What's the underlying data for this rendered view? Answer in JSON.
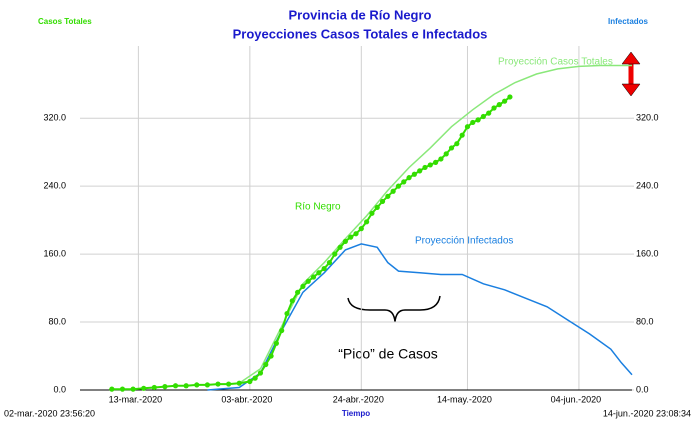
{
  "chart_data": {
    "type": "line",
    "title": "Provincia de Río Negro",
    "subtitle": "Proyecciones Casos Totales e Infectados",
    "y_label": "Casos Totales",
    "y2_label": "Infectados",
    "x_label": "Tiempo",
    "x_start_label": "02-mar.-2020 23:56:20",
    "x_end_label": "14-jun.-2020 23:08:34",
    "annotation": "“Pico” de Casos",
    "xlim": [
      0,
      104
    ],
    "xticks": [
      {
        "value": 11,
        "label": "13-mar.-2020"
      },
      {
        "value": 32,
        "label": "03-abr.-2020"
      },
      {
        "value": 53,
        "label": "24-abr.-2020"
      },
      {
        "value": 73,
        "label": "14-may.-2020"
      },
      {
        "value": 94,
        "label": "04-jun.-2020"
      }
    ],
    "ylim": [
      0,
      405
    ],
    "yticks": [
      {
        "value": 0,
        "label": "0.0"
      },
      {
        "value": 80,
        "label": "80.0"
      },
      {
        "value": 160,
        "label": "160.0"
      },
      {
        "value": 240,
        "label": "240.0"
      },
      {
        "value": 320,
        "label": "320.0"
      }
    ],
    "y2lim": [
      0,
      405
    ],
    "y2ticks": [
      {
        "value": 0,
        "label": "0.0"
      },
      {
        "value": 80,
        "label": "80.0"
      },
      {
        "value": 160,
        "label": "160.0"
      },
      {
        "value": 240,
        "label": "240.0"
      },
      {
        "value": 320,
        "label": "320.0"
      }
    ],
    "grid": true,
    "series": [
      {
        "name": "Proyección Casos Totales",
        "color": "#8ae87a",
        "markers": false,
        "x": [
          30,
          34,
          38,
          42,
          46,
          50,
          54,
          58,
          62,
          66,
          70,
          74,
          78,
          82,
          86,
          90,
          94,
          98,
          104
        ],
        "values": [
          8,
          25,
          75,
          125,
          150,
          178,
          205,
          235,
          262,
          285,
          310,
          330,
          348,
          362,
          372,
          378,
          381,
          382,
          382
        ]
      },
      {
        "name": "Proyección Infectados",
        "color": "#1a7fe0",
        "markers": false,
        "axis": "y2",
        "x": [
          24,
          30,
          34,
          38,
          42,
          46,
          50,
          53,
          56,
          58,
          60,
          64,
          68,
          72,
          76,
          80,
          84,
          88,
          92,
          96,
          100,
          102,
          104
        ],
        "values": [
          0,
          3,
          20,
          70,
          115,
          138,
          165,
          172,
          168,
          150,
          140,
          138,
          136,
          136,
          125,
          118,
          108,
          98,
          82,
          66,
          48,
          32,
          18
        ]
      },
      {
        "name": "Río Negro",
        "color": "#33dd00",
        "markers": true,
        "x": [
          6,
          8,
          10,
          12,
          14,
          16,
          18,
          20,
          22,
          24,
          26,
          28,
          30,
          32,
          33,
          34,
          35,
          36,
          37,
          38,
          39,
          40,
          41,
          42,
          43,
          44,
          45,
          46,
          47,
          48,
          49,
          50,
          51,
          52,
          53,
          54,
          55,
          56,
          57,
          58,
          59,
          60,
          61,
          62,
          63,
          64,
          65,
          66,
          67,
          68,
          69,
          70,
          71,
          72,
          73,
          74,
          75,
          76,
          77,
          78,
          79,
          80,
          81
        ],
        "values": [
          1,
          1,
          1,
          2,
          3,
          4,
          5,
          5,
          6,
          6,
          7,
          7,
          8,
          10,
          14,
          20,
          30,
          40,
          55,
          70,
          90,
          105,
          115,
          122,
          128,
          133,
          138,
          143,
          150,
          160,
          168,
          175,
          180,
          184,
          190,
          198,
          208,
          215,
          222,
          228,
          234,
          240,
          245,
          250,
          254,
          258,
          262,
          265,
          268,
          272,
          278,
          285,
          290,
          300,
          310,
          315,
          318,
          322,
          326,
          332,
          336,
          340,
          345
        ]
      }
    ]
  }
}
